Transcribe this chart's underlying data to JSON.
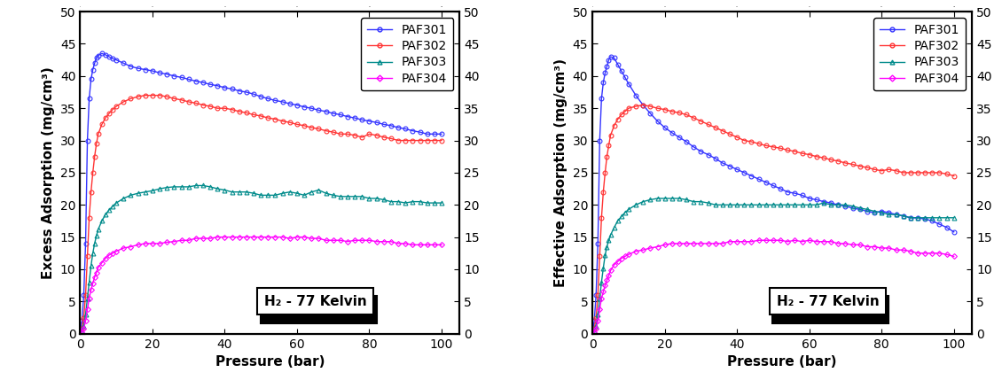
{
  "excess": {
    "PAF301": {
      "color": "#3333FF",
      "marker": "o",
      "pressure": [
        0.0,
        0.5,
        1.0,
        1.5,
        2.0,
        2.5,
        3.0,
        3.5,
        4.0,
        4.5,
        5.0,
        6.0,
        7.0,
        8.0,
        9.0,
        10.0,
        12.0,
        14.0,
        16.0,
        18.0,
        20.0,
        22.0,
        24.0,
        26.0,
        28.0,
        30.0,
        32.0,
        34.0,
        36.0,
        38.0,
        40.0,
        42.0,
        44.0,
        46.0,
        48.0,
        50.0,
        52.0,
        54.0,
        56.0,
        58.0,
        60.0,
        62.0,
        64.0,
        66.0,
        68.0,
        70.0,
        72.0,
        74.0,
        76.0,
        78.0,
        80.0,
        82.0,
        84.0,
        86.0,
        88.0,
        90.0,
        92.0,
        94.0,
        96.0,
        98.0,
        100.0
      ],
      "adsorption": [
        0.0,
        2.0,
        6.0,
        14.0,
        30.0,
        36.5,
        39.5,
        41.0,
        42.0,
        42.8,
        43.2,
        43.5,
        43.3,
        43.0,
        42.7,
        42.5,
        42.0,
        41.5,
        41.2,
        41.0,
        40.8,
        40.5,
        40.3,
        40.0,
        39.8,
        39.5,
        39.2,
        39.0,
        38.7,
        38.5,
        38.2,
        38.0,
        37.7,
        37.5,
        37.2,
        36.8,
        36.5,
        36.2,
        36.0,
        35.7,
        35.5,
        35.2,
        35.0,
        34.7,
        34.5,
        34.2,
        34.0,
        33.7,
        33.5,
        33.2,
        33.0,
        32.8,
        32.5,
        32.3,
        32.0,
        31.8,
        31.5,
        31.3,
        31.0,
        31.0,
        31.0
      ]
    },
    "PAF302": {
      "color": "#FF3333",
      "marker": "o",
      "pressure": [
        0.0,
        0.5,
        1.0,
        1.5,
        2.0,
        2.5,
        3.0,
        3.5,
        4.0,
        4.5,
        5.0,
        6.0,
        7.0,
        8.0,
        9.0,
        10.0,
        12.0,
        14.0,
        16.0,
        18.0,
        20.0,
        22.0,
        24.0,
        26.0,
        28.0,
        30.0,
        32.0,
        34.0,
        36.0,
        38.0,
        40.0,
        42.0,
        44.0,
        46.0,
        48.0,
        50.0,
        52.0,
        54.0,
        56.0,
        58.0,
        60.0,
        62.0,
        64.0,
        66.0,
        68.0,
        70.0,
        72.0,
        74.0,
        76.0,
        78.0,
        80.0,
        82.0,
        84.0,
        86.0,
        88.0,
        90.0,
        92.0,
        94.0,
        96.0,
        98.0,
        100.0
      ],
      "adsorption": [
        0.0,
        0.8,
        2.5,
        6.0,
        12.0,
        18.0,
        22.0,
        25.0,
        27.5,
        29.5,
        31.0,
        32.5,
        33.5,
        34.2,
        34.8,
        35.3,
        36.0,
        36.5,
        36.8,
        37.0,
        37.0,
        37.0,
        36.8,
        36.5,
        36.3,
        36.0,
        35.8,
        35.5,
        35.3,
        35.0,
        35.0,
        34.8,
        34.5,
        34.3,
        34.0,
        33.8,
        33.5,
        33.3,
        33.0,
        32.8,
        32.5,
        32.3,
        32.0,
        31.8,
        31.5,
        31.3,
        31.0,
        31.0,
        30.8,
        30.5,
        31.0,
        30.8,
        30.5,
        30.3,
        30.0,
        30.0,
        30.0,
        30.0,
        30.0,
        30.0,
        30.0
      ]
    },
    "PAF303": {
      "color": "#008B8B",
      "marker": "^",
      "pressure": [
        0.0,
        0.5,
        1.0,
        1.5,
        2.0,
        2.5,
        3.0,
        3.5,
        4.0,
        4.5,
        5.0,
        6.0,
        7.0,
        8.0,
        9.0,
        10.0,
        12.0,
        14.0,
        16.0,
        18.0,
        20.0,
        22.0,
        24.0,
        26.0,
        28.0,
        30.0,
        32.0,
        34.0,
        36.0,
        38.0,
        40.0,
        42.0,
        44.0,
        46.0,
        48.0,
        50.0,
        52.0,
        54.0,
        56.0,
        58.0,
        60.0,
        62.0,
        64.0,
        66.0,
        68.0,
        70.0,
        72.0,
        74.0,
        76.0,
        78.0,
        80.0,
        82.0,
        84.0,
        86.0,
        88.0,
        90.0,
        92.0,
        94.0,
        96.0,
        98.0,
        100.0
      ],
      "adsorption": [
        0.0,
        0.3,
        1.2,
        3.0,
        5.5,
        8.0,
        10.5,
        12.5,
        14.0,
        15.2,
        16.2,
        17.5,
        18.5,
        19.2,
        19.8,
        20.3,
        21.0,
        21.5,
        21.8,
        22.0,
        22.2,
        22.5,
        22.7,
        22.8,
        22.8,
        22.8,
        23.0,
        23.0,
        22.8,
        22.5,
        22.3,
        22.0,
        22.0,
        22.0,
        21.8,
        21.5,
        21.5,
        21.5,
        21.8,
        22.0,
        21.8,
        21.5,
        22.0,
        22.3,
        21.8,
        21.5,
        21.3,
        21.3,
        21.3,
        21.3,
        21.0,
        21.0,
        20.8,
        20.5,
        20.5,
        20.3,
        20.5,
        20.5,
        20.3,
        20.3,
        20.3
      ]
    },
    "PAF304": {
      "color": "#FF00FF",
      "marker": "D",
      "pressure": [
        0.0,
        0.5,
        1.0,
        1.5,
        2.0,
        2.5,
        3.0,
        3.5,
        4.0,
        4.5,
        5.0,
        6.0,
        7.0,
        8.0,
        9.0,
        10.0,
        12.0,
        14.0,
        16.0,
        18.0,
        20.0,
        22.0,
        24.0,
        26.0,
        28.0,
        30.0,
        32.0,
        34.0,
        36.0,
        38.0,
        40.0,
        42.0,
        44.0,
        46.0,
        48.0,
        50.0,
        52.0,
        54.0,
        56.0,
        58.0,
        60.0,
        62.0,
        64.0,
        66.0,
        68.0,
        70.0,
        72.0,
        74.0,
        76.0,
        78.0,
        80.0,
        82.0,
        84.0,
        86.0,
        88.0,
        90.0,
        92.0,
        94.0,
        96.0,
        98.0,
        100.0
      ],
      "adsorption": [
        0.0,
        0.2,
        0.8,
        2.0,
        3.8,
        5.5,
        6.8,
        7.8,
        8.8,
        9.5,
        10.3,
        11.0,
        11.7,
        12.2,
        12.5,
        12.8,
        13.3,
        13.5,
        13.8,
        14.0,
        14.0,
        14.0,
        14.2,
        14.3,
        14.5,
        14.5,
        14.8,
        14.8,
        14.8,
        15.0,
        15.0,
        15.0,
        15.0,
        15.0,
        15.0,
        15.0,
        15.0,
        15.0,
        15.0,
        14.8,
        15.0,
        15.0,
        14.8,
        14.8,
        14.5,
        14.5,
        14.5,
        14.3,
        14.5,
        14.5,
        14.5,
        14.3,
        14.3,
        14.3,
        14.0,
        14.0,
        13.8,
        13.8,
        13.8,
        13.8,
        13.8
      ]
    }
  },
  "effective": {
    "PAF301": {
      "color": "#3333FF",
      "marker": "o",
      "pressure": [
        0.0,
        0.5,
        1.0,
        1.5,
        2.0,
        2.5,
        3.0,
        3.5,
        4.0,
        4.5,
        5.0,
        6.0,
        7.0,
        8.0,
        9.0,
        10.0,
        12.0,
        14.0,
        16.0,
        18.0,
        20.0,
        22.0,
        24.0,
        26.0,
        28.0,
        30.0,
        32.0,
        34.0,
        36.0,
        38.0,
        40.0,
        42.0,
        44.0,
        46.0,
        48.0,
        50.0,
        52.0,
        54.0,
        56.0,
        58.0,
        60.0,
        62.0,
        64.0,
        66.0,
        68.0,
        70.0,
        72.0,
        74.0,
        76.0,
        78.0,
        80.0,
        82.0,
        84.0,
        86.0,
        88.0,
        90.0,
        92.0,
        94.0,
        96.0,
        98.0,
        100.0
      ],
      "adsorption": [
        0.0,
        2.0,
        6.0,
        14.0,
        30.0,
        36.5,
        39.0,
        40.5,
        41.5,
        42.5,
        43.0,
        42.8,
        41.8,
        40.8,
        39.8,
        38.8,
        37.0,
        35.5,
        34.2,
        33.0,
        32.0,
        31.2,
        30.5,
        29.8,
        29.0,
        28.3,
        27.8,
        27.2,
        26.5,
        26.0,
        25.5,
        25.0,
        24.5,
        24.0,
        23.5,
        23.0,
        22.5,
        22.0,
        21.8,
        21.5,
        21.0,
        20.8,
        20.5,
        20.3,
        20.0,
        19.8,
        19.5,
        19.3,
        19.0,
        18.8,
        19.0,
        18.8,
        18.5,
        18.3,
        18.0,
        18.0,
        17.8,
        17.5,
        17.0,
        16.5,
        15.8
      ]
    },
    "PAF302": {
      "color": "#FF3333",
      "marker": "o",
      "pressure": [
        0.0,
        0.5,
        1.0,
        1.5,
        2.0,
        2.5,
        3.0,
        3.5,
        4.0,
        4.5,
        5.0,
        6.0,
        7.0,
        8.0,
        9.0,
        10.0,
        12.0,
        14.0,
        16.0,
        18.0,
        20.0,
        22.0,
        24.0,
        26.0,
        28.0,
        30.0,
        32.0,
        34.0,
        36.0,
        38.0,
        40.0,
        42.0,
        44.0,
        46.0,
        48.0,
        50.0,
        52.0,
        54.0,
        56.0,
        58.0,
        60.0,
        62.0,
        64.0,
        66.0,
        68.0,
        70.0,
        72.0,
        74.0,
        76.0,
        78.0,
        80.0,
        82.0,
        84.0,
        86.0,
        88.0,
        90.0,
        92.0,
        94.0,
        96.0,
        98.0,
        100.0
      ],
      "adsorption": [
        0.0,
        0.8,
        2.5,
        6.0,
        12.0,
        18.0,
        22.0,
        25.0,
        27.5,
        29.2,
        30.8,
        32.3,
        33.3,
        34.0,
        34.5,
        35.0,
        35.3,
        35.5,
        35.3,
        35.0,
        34.8,
        34.5,
        34.3,
        34.0,
        33.5,
        33.0,
        32.5,
        32.0,
        31.5,
        31.0,
        30.5,
        30.0,
        29.8,
        29.5,
        29.2,
        29.0,
        28.8,
        28.5,
        28.3,
        28.0,
        27.8,
        27.5,
        27.3,
        27.0,
        26.8,
        26.5,
        26.3,
        26.0,
        25.8,
        25.5,
        25.3,
        25.5,
        25.3,
        25.0,
        25.0,
        25.0,
        25.0,
        25.0,
        25.0,
        24.8,
        24.5
      ]
    },
    "PAF303": {
      "color": "#008B8B",
      "marker": "^",
      "pressure": [
        0.0,
        0.5,
        1.0,
        1.5,
        2.0,
        2.5,
        3.0,
        3.5,
        4.0,
        4.5,
        5.0,
        6.0,
        7.0,
        8.0,
        9.0,
        10.0,
        12.0,
        14.0,
        16.0,
        18.0,
        20.0,
        22.0,
        24.0,
        26.0,
        28.0,
        30.0,
        32.0,
        34.0,
        36.0,
        38.0,
        40.0,
        42.0,
        44.0,
        46.0,
        48.0,
        50.0,
        52.0,
        54.0,
        56.0,
        58.0,
        60.0,
        62.0,
        64.0,
        66.0,
        68.0,
        70.0,
        72.0,
        74.0,
        76.0,
        78.0,
        80.0,
        82.0,
        84.0,
        86.0,
        88.0,
        90.0,
        92.0,
        94.0,
        96.0,
        98.0,
        100.0
      ],
      "adsorption": [
        0.0,
        0.3,
        1.2,
        3.0,
        5.5,
        8.0,
        10.2,
        12.2,
        13.5,
        14.5,
        15.3,
        16.5,
        17.5,
        18.2,
        18.8,
        19.3,
        20.0,
        20.5,
        20.8,
        21.0,
        21.0,
        21.0,
        21.0,
        20.8,
        20.5,
        20.5,
        20.3,
        20.0,
        20.0,
        20.0,
        20.0,
        20.0,
        20.0,
        20.0,
        20.0,
        20.0,
        20.0,
        20.0,
        20.0,
        20.0,
        20.0,
        20.0,
        20.3,
        20.0,
        20.0,
        20.0,
        19.8,
        19.5,
        19.3,
        19.0,
        18.8,
        18.5,
        18.5,
        18.3,
        18.0,
        18.0,
        18.0,
        18.0,
        18.0,
        18.0,
        18.0
      ]
    },
    "PAF304": {
      "color": "#FF00FF",
      "marker": "D",
      "pressure": [
        0.0,
        0.5,
        1.0,
        1.5,
        2.0,
        2.5,
        3.0,
        3.5,
        4.0,
        4.5,
        5.0,
        6.0,
        7.0,
        8.0,
        9.0,
        10.0,
        12.0,
        14.0,
        16.0,
        18.0,
        20.0,
        22.0,
        24.0,
        26.0,
        28.0,
        30.0,
        32.0,
        34.0,
        36.0,
        38.0,
        40.0,
        42.0,
        44.0,
        46.0,
        48.0,
        50.0,
        52.0,
        54.0,
        56.0,
        58.0,
        60.0,
        62.0,
        64.0,
        66.0,
        68.0,
        70.0,
        72.0,
        74.0,
        76.0,
        78.0,
        80.0,
        82.0,
        84.0,
        86.0,
        88.0,
        90.0,
        92.0,
        94.0,
        96.0,
        98.0,
        100.0
      ],
      "adsorption": [
        0.0,
        0.2,
        0.8,
        2.0,
        3.8,
        5.5,
        6.5,
        7.5,
        8.3,
        9.0,
        9.8,
        10.7,
        11.2,
        11.7,
        12.0,
        12.3,
        12.8,
        13.0,
        13.3,
        13.5,
        13.8,
        14.0,
        14.0,
        14.0,
        14.0,
        14.0,
        14.0,
        14.0,
        14.0,
        14.3,
        14.3,
        14.3,
        14.3,
        14.5,
        14.5,
        14.5,
        14.5,
        14.3,
        14.5,
        14.3,
        14.5,
        14.3,
        14.3,
        14.3,
        14.0,
        14.0,
        13.8,
        13.8,
        13.5,
        13.5,
        13.3,
        13.3,
        13.0,
        13.0,
        12.8,
        12.5,
        12.5,
        12.5,
        12.5,
        12.3,
        12.0
      ]
    }
  },
  "ylabel_excess": "Excess Adsorption (mg/cm³)",
  "ylabel_effective": "Effective Adsorption (mg/cm³)",
  "xlabel": "Pressure (bar)",
  "ylim": [
    0,
    50
  ],
  "xlim": [
    0,
    105
  ],
  "yticks": [
    0,
    5,
    10,
    15,
    20,
    25,
    30,
    35,
    40,
    45,
    50
  ],
  "xticks": [
    0,
    20,
    40,
    60,
    80,
    100
  ],
  "annotation": "H₂ - 77 Kelvin",
  "legend_labels": [
    "PAF301",
    "PAF302",
    "PAF303",
    "PAF304"
  ],
  "legend_colors": [
    "#3333FF",
    "#FF3333",
    "#008B8B",
    "#FF00FF"
  ],
  "legend_markers": [
    "o",
    "o",
    "^",
    "D"
  ],
  "background_color": "#ffffff",
  "plot_bg_color": "#ffffff",
  "tick_fontsize": 10,
  "label_fontsize": 11,
  "legend_fontsize": 10,
  "series_order": [
    "PAF301",
    "PAF302",
    "PAF303",
    "PAF304"
  ]
}
